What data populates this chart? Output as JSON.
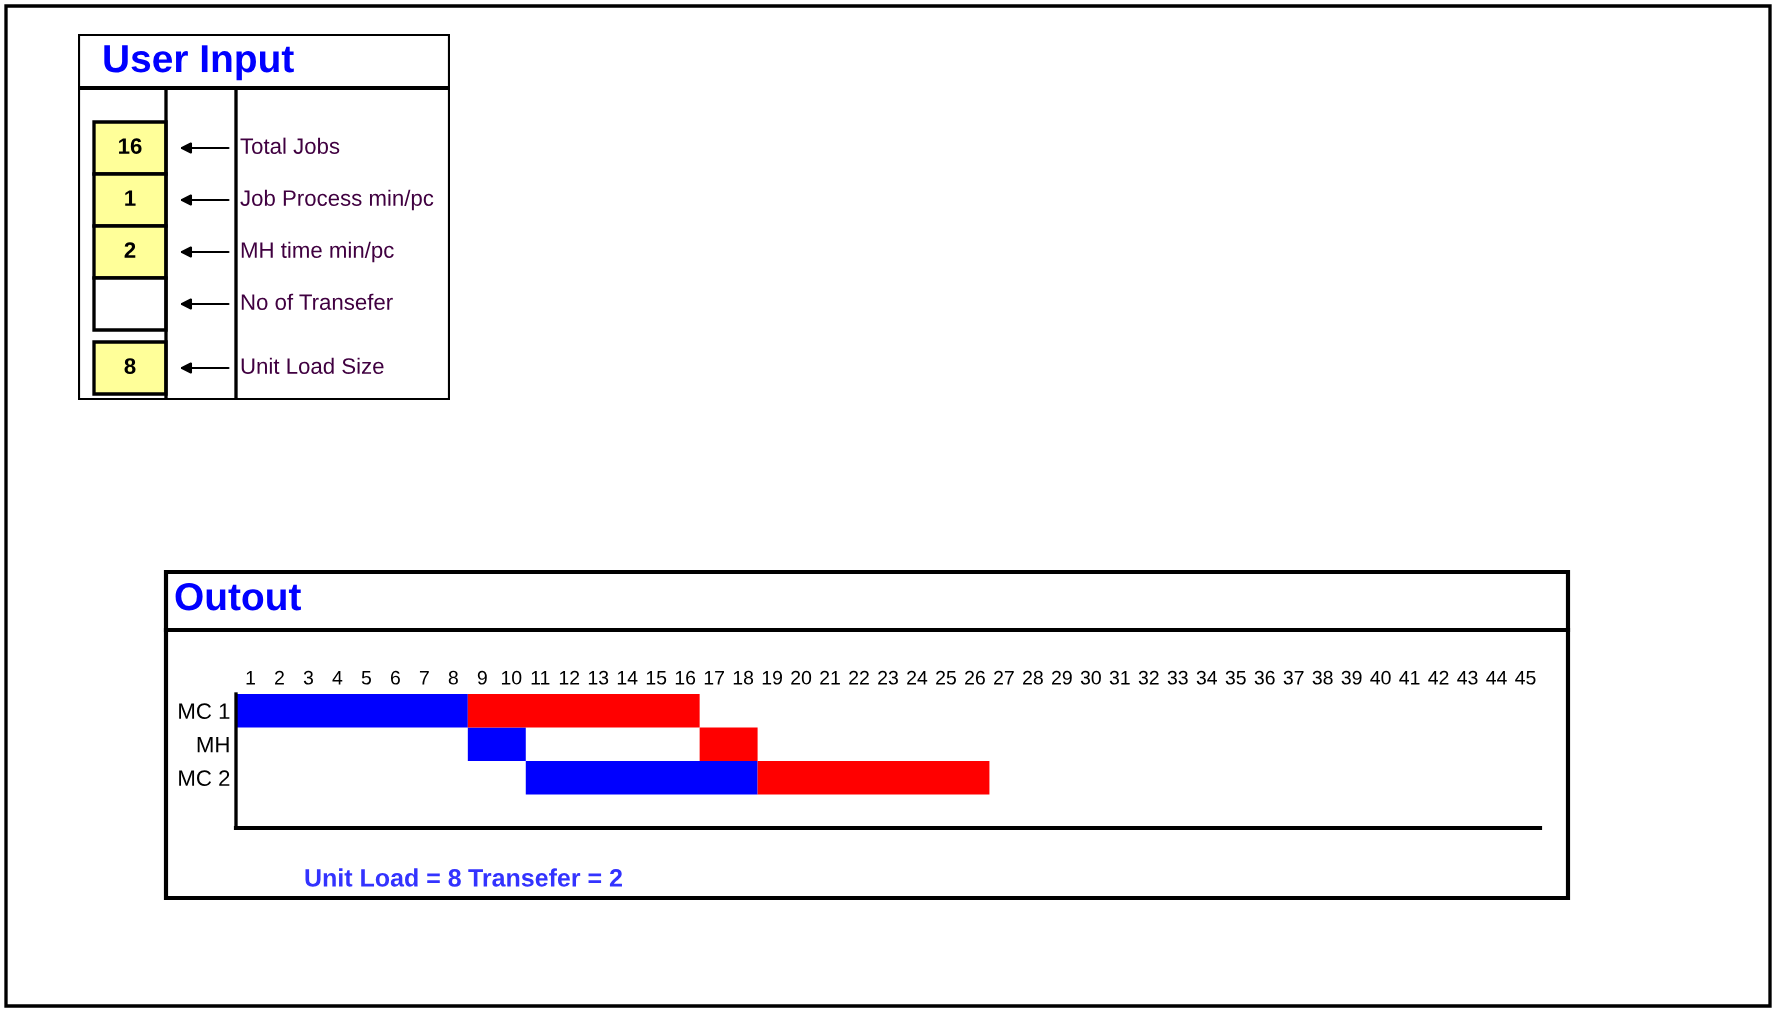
{
  "chart_data": [
    {
      "type": "other",
      "title": "User Input",
      "categories": [
        "Total Jobs",
        "Job Process min/pc",
        "MH time min/pc",
        "No of Transefer",
        "Unit Load Size"
      ],
      "value_labels": [
        "16",
        "1",
        "2",
        null,
        "8"
      ],
      "color": "#ffff99"
    },
    {
      "type": "bar",
      "orientation": "horizontal",
      "title": "Outout",
      "categories": [
        "MC 1",
        "MH",
        "MC 2"
      ],
      "series": [
        {
          "color": "#0000ff",
          "values": [
            8,
            2,
            8
          ],
          "base": [
            0.5,
            8.5,
            10.5
          ]
        },
        {
          "color": "#ff0000",
          "values": [
            8,
            2,
            8
          ],
          "base": [
            8.5,
            16.5,
            18.5
          ]
        }
      ],
      "xlim": [
        0.5,
        45.5
      ],
      "xticks": [
        1,
        2,
        3,
        4,
        5,
        6,
        7,
        8,
        9,
        10,
        11,
        12,
        13,
        14,
        15,
        16,
        17,
        18,
        19,
        20,
        21,
        22,
        23,
        24,
        25,
        26,
        27,
        28,
        29,
        30,
        31,
        32,
        33,
        34,
        35,
        36,
        37,
        38,
        39,
        40,
        41,
        42,
        43,
        44,
        45
      ],
      "grid": false,
      "legend": false,
      "annotations": [
        "Unit Load = 8",
        "Transefer = 2"
      ]
    }
  ]
}
